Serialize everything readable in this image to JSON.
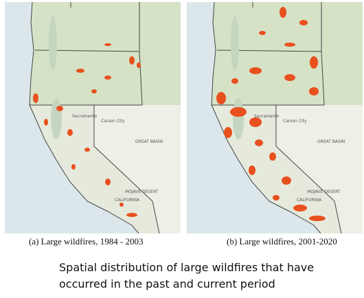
{
  "panels": [
    {
      "caption": "(a) Large wildfires, 1984 - 2003"
    },
    {
      "caption": "(b) Large wildfires, 2001-2020"
    }
  ],
  "map_labels": {
    "carson_city": "Carson City",
    "great_basin": "GREAT BASIN",
    "sacramento": "Sacramento",
    "mojave": "MOJAVE DESERT",
    "california": "CALIFORNIA"
  },
  "description": {
    "lines": [
      "Spatial distribution of large wildfires that have",
      "occurred in the past and current period"
    ]
  }
}
